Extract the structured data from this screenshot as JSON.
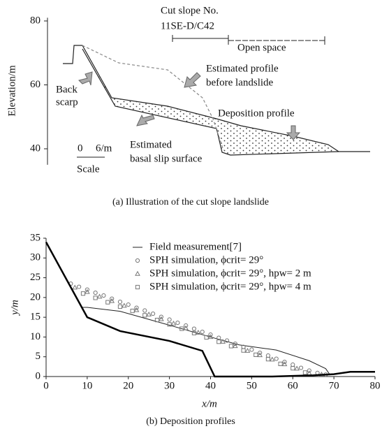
{
  "chart_data": [
    {
      "type": "diagram",
      "y_label": "Elevation/m",
      "ylim": [
        35,
        81
      ],
      "yticks": [
        40,
        60,
        80
      ],
      "annotations": {
        "cut_slope": "Cut slope No.",
        "cut_slope_id": "11SE-D/C42",
        "open_space": "Open space",
        "estimated_profile_1": "Estimated profile",
        "estimated_profile_2": "before landslide",
        "back_1": "Back",
        "back_2": "scarp",
        "deposition": "Deposition profile",
        "basal_1": "Estimated",
        "basal_2": "basal slip surface",
        "scale_0": "0",
        "scale_6": "6/m",
        "scale": "Scale"
      },
      "caption": "(a) Illustration of the cut slope landslide"
    },
    {
      "type": "profile",
      "x_label": "x/m",
      "y_label": "y/m",
      "xlim": [
        0,
        80
      ],
      "ylim": [
        0,
        35
      ],
      "xticks": [
        0,
        10,
        20,
        30,
        40,
        50,
        60,
        70,
        80
      ],
      "yticks": [
        0,
        5,
        10,
        15,
        20,
        25,
        30,
        35
      ],
      "caption": "(b) Deposition profiles",
      "series": [
        {
          "name": "Field measurement[7]",
          "kind": "line",
          "color": "#222222",
          "width": 1,
          "x": [
            8.5,
            10,
            18,
            30,
            40,
            47,
            56,
            64,
            68,
            69
          ],
          "values": [
            17.5,
            17.5,
            16.5,
            13,
            10,
            8,
            6.7,
            4,
            2,
            0.5
          ]
        },
        {
          "name": "SPH simulation, ϕcrit= 29°",
          "kind": "scatter",
          "marker": "circle",
          "color": "#777777",
          "x": [
            6,
            8,
            10,
            12,
            14,
            16,
            18,
            20,
            22,
            24,
            26,
            28,
            30,
            32,
            34,
            36,
            38,
            40,
            42,
            44,
            46,
            48,
            50,
            52,
            54,
            56,
            58,
            60,
            62,
            64,
            66,
            68
          ],
          "values": [
            23.5,
            22.7,
            22,
            21.2,
            20.5,
            19.7,
            18.9,
            18.2,
            17.4,
            16.7,
            15.9,
            15.1,
            14.4,
            13.6,
            12.9,
            12.1,
            11.3,
            10.6,
            9.8,
            9.1,
            8.3,
            7.5,
            6.8,
            6,
            5.3,
            4.5,
            3.7,
            3,
            2.2,
            1.5,
            0.9,
            0.5
          ]
        },
        {
          "name": "SPH simulation, ϕcrit= 29°, hpw= 2 m",
          "kind": "scatter",
          "marker": "triangle",
          "color": "#777777",
          "x": [
            7,
            10,
            13,
            16,
            19,
            22,
            25,
            28,
            31,
            34,
            37,
            40,
            43,
            46,
            49,
            52,
            55,
            58,
            61,
            64,
            67
          ],
          "values": [
            22.5,
            21.4,
            20.2,
            19.1,
            17.9,
            16.8,
            15.7,
            14.5,
            13.4,
            12.2,
            11.1,
            10,
            8.8,
            7.7,
            6.5,
            5.4,
            4.3,
            3.1,
            2,
            0.8,
            0.5
          ]
        },
        {
          "name": "SPH simulation, ϕcrit= 29°, hpw= 4 m",
          "kind": "scatter",
          "marker": "square",
          "color": "#777777",
          "x": [
            9,
            12,
            15,
            18,
            21,
            24,
            27,
            30,
            33,
            36,
            39,
            42,
            45,
            48,
            51,
            54,
            57,
            60,
            63
          ],
          "values": [
            21,
            19.9,
            18.8,
            17.7,
            16.6,
            15.5,
            14.3,
            13.2,
            12.1,
            11,
            9.9,
            8.8,
            7.7,
            6.6,
            5.5,
            4.4,
            3.2,
            2.1,
            1
          ]
        },
        {
          "kind": "line",
          "color": "#000000",
          "width": 2.5,
          "x": [
            0,
            10,
            18,
            30,
            38,
            41,
            55,
            65,
            70,
            74,
            80
          ],
          "values": [
            34,
            15,
            11.5,
            9,
            6.5,
            0,
            0,
            0.3,
            0.6,
            1.2,
            1.2
          ]
        }
      ]
    }
  ]
}
